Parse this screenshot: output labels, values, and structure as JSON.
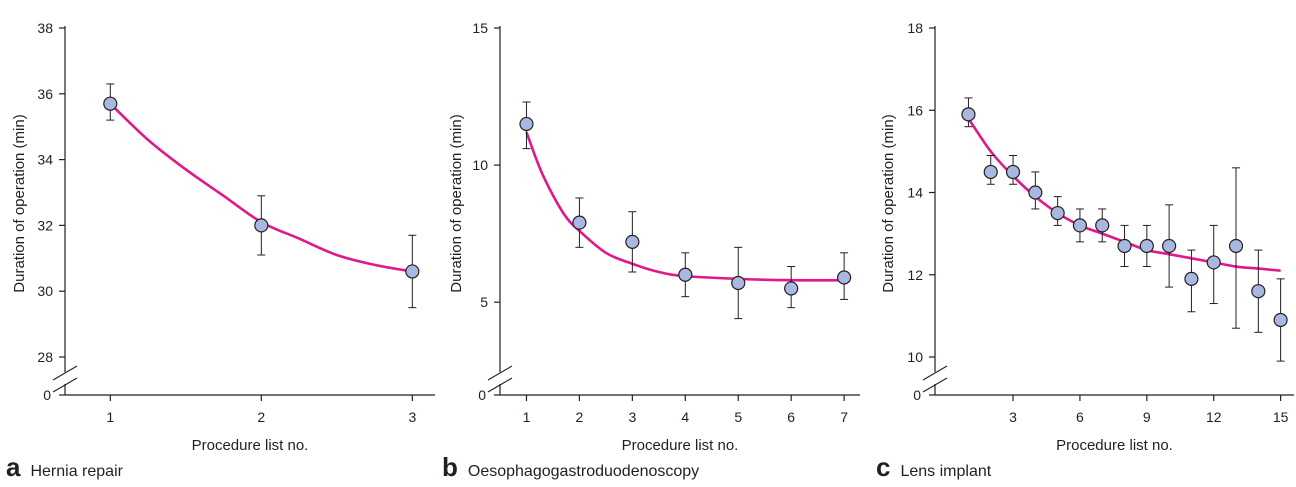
{
  "colors": {
    "curve": "#e0188c",
    "marker_fill": "#a9b8e0",
    "marker_edge": "#231f20",
    "axis": "#231f20"
  },
  "chart_data": [
    {
      "type": "scatter",
      "panel_letter": "a",
      "panel_title": "Hernia repair",
      "xlabel": "Procedure list no.",
      "ylabel": "Duration of operation (min)",
      "xlim": [
        0.7,
        3.15
      ],
      "ylim": [
        28,
        38
      ],
      "axis_break": true,
      "baseline_label": "0",
      "xticks": [
        1,
        2,
        3
      ],
      "yticks": [
        28,
        30,
        32,
        34,
        36,
        38
      ],
      "series": [
        {
          "x": [
            1,
            2,
            3
          ],
          "y": [
            35.7,
            32.0,
            30.6
          ],
          "error_low": [
            35.2,
            31.1,
            29.5
          ],
          "error_high": [
            36.3,
            32.9,
            31.7
          ]
        }
      ],
      "fit_curve": {
        "x": [
          1.0,
          1.25,
          1.5,
          1.75,
          2.0,
          2.25,
          2.5,
          2.75,
          3.0
        ],
        "y": [
          35.7,
          34.6,
          33.7,
          32.9,
          32.1,
          31.6,
          31.1,
          30.8,
          30.6
        ]
      }
    },
    {
      "type": "scatter",
      "panel_letter": "b",
      "panel_title": "Oesophagogastroduodenoscopy",
      "xlabel": "Procedure list no.",
      "ylabel": "Duration of operation (min)",
      "xlim": [
        0.5,
        7.3
      ],
      "ylim": [
        3,
        15
      ],
      "axis_break": true,
      "baseline_label": "0",
      "xticks": [
        1,
        2,
        3,
        4,
        5,
        6,
        7
      ],
      "yticks": [
        5,
        10,
        15
      ],
      "series": [
        {
          "x": [
            1,
            2,
            3,
            4,
            5,
            6,
            7
          ],
          "y": [
            11.5,
            7.9,
            7.2,
            6.0,
            5.7,
            5.5,
            5.9
          ],
          "error_low": [
            10.6,
            7.0,
            6.1,
            5.2,
            4.4,
            4.8,
            5.1
          ],
          "error_high": [
            12.3,
            8.8,
            8.3,
            6.8,
            7.0,
            6.3,
            6.8
          ]
        }
      ],
      "fit_curve": {
        "x": [
          1.0,
          1.25,
          1.5,
          1.75,
          2.0,
          2.5,
          3.0,
          3.5,
          4.0,
          5.0,
          6.0,
          7.0
        ],
        "y": [
          11.2,
          9.9,
          8.9,
          8.1,
          7.6,
          6.8,
          6.4,
          6.1,
          5.95,
          5.85,
          5.8,
          5.8
        ]
      }
    },
    {
      "type": "scatter",
      "panel_letter": "c",
      "panel_title": "Lens implant",
      "xlabel": "Procedure list no.",
      "ylabel": "Duration of operation (min)",
      "xlim": [
        -0.5,
        15.6
      ],
      "ylim": [
        10,
        18
      ],
      "axis_break": true,
      "baseline_label": "0",
      "xticks": [
        3,
        6,
        9,
        12,
        15
      ],
      "yticks": [
        10,
        12,
        14,
        16,
        18
      ],
      "series": [
        {
          "x": [
            1,
            2,
            3,
            4,
            5,
            6,
            7,
            8,
            9,
            10,
            11,
            12,
            13,
            14,
            15
          ],
          "y": [
            15.9,
            14.5,
            14.5,
            14.0,
            13.5,
            13.2,
            13.2,
            12.7,
            12.7,
            12.7,
            11.9,
            12.3,
            12.7,
            11.6,
            10.9
          ],
          "error_low": [
            15.6,
            14.2,
            14.2,
            13.6,
            13.2,
            12.8,
            12.8,
            12.2,
            12.2,
            11.7,
            11.1,
            11.3,
            10.7,
            10.6,
            9.9
          ],
          "error_high": [
            16.3,
            14.9,
            14.9,
            14.5,
            13.9,
            13.6,
            13.6,
            13.2,
            13.2,
            13.7,
            12.6,
            13.2,
            14.6,
            12.6,
            11.9
          ]
        }
      ],
      "fit_curve": {
        "x": [
          1.0,
          2.0,
          3.0,
          4.0,
          5.0,
          6.0,
          7.0,
          8.0,
          9.0,
          10.0,
          11.0,
          12.0,
          13.0,
          14.0,
          15.0
        ],
        "y": [
          15.8,
          15.0,
          14.4,
          13.9,
          13.5,
          13.2,
          13.0,
          12.8,
          12.6,
          12.5,
          12.4,
          12.3,
          12.2,
          12.15,
          12.1
        ]
      }
    }
  ]
}
